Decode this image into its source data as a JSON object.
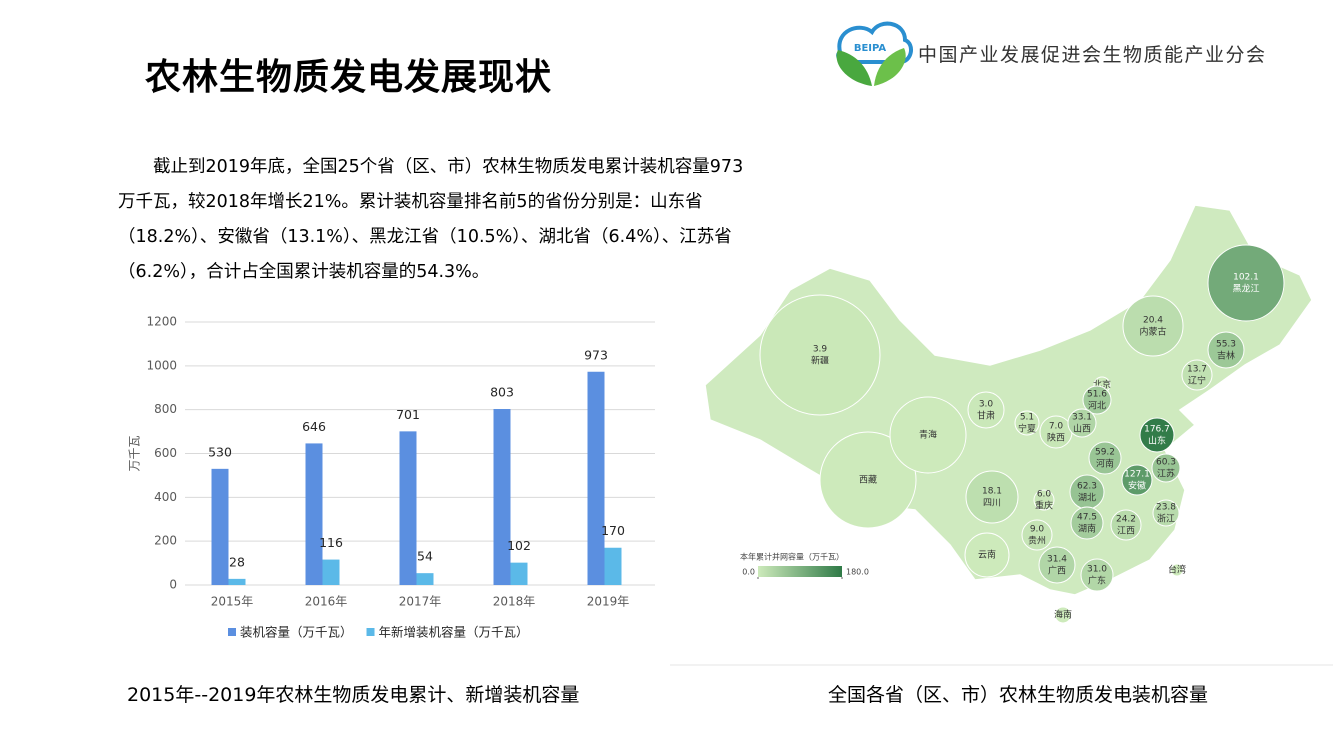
{
  "header": {
    "title": "农林生物质发电发展现状",
    "org": "中国产业发展促进会生物质能产业分会",
    "logo": "BEIPA"
  },
  "paragraph": "截止到2019年底，全国25个省（区、市）农林生物质发电累计装机容量973万千瓦，较2018年增长21%。累计装机容量排名前5的省份分别是：山东省（18.2%）、安徽省（13.1%）、黑龙江省（10.5%）、湖北省（6.4%）、江苏省（6.2%），合计占全国累计装机容量的54.3%。",
  "chart_data": {
    "type": "bar",
    "categories": [
      "2015年",
      "2016年",
      "2017年",
      "2018年",
      "2019年"
    ],
    "series": [
      {
        "name": "装机容量（万千瓦）",
        "color": "#5b8fe0",
        "values": [
          530,
          646,
          701,
          803,
          973
        ]
      },
      {
        "name": "年新增装机容量（万千瓦）",
        "color": "#5bb9e8",
        "values": [
          28,
          116,
          54,
          102,
          170
        ]
      }
    ],
    "y_label": "万千瓦",
    "ylim": [
      0,
      1200
    ],
    "yticks": [
      0,
      200,
      400,
      600,
      800,
      1000,
      1200
    ],
    "grid": true,
    "legend": "bottom"
  },
  "chart_caption": "2015年--2019年农林生物质发电累计、新增装机容量",
  "map": {
    "legend_title": "本年累计并网容量（万千瓦）",
    "legend_ticks": [
      {
        "value": 0,
        "label": "0.0"
      },
      {
        "value": 180,
        "label": "180.0"
      }
    ],
    "low_color": "#cdeabb",
    "high_color": "#2f7a47",
    "provinces": [
      "新疆",
      "西藏",
      "青海",
      "甘肃",
      "宁夏",
      "陕西",
      "内蒙古",
      "黑龙江",
      "吉林",
      "辽宁",
      "北京",
      "河北",
      "山西",
      "山东",
      "河南",
      "江苏",
      "安徽",
      "湖北",
      "浙江",
      "四川",
      "重庆",
      "贵州",
      "湖南",
      "江西",
      "云南",
      "广西",
      "广东",
      "台湾",
      "海南"
    ],
    "values": [
      3.9,
      null,
      null,
      3.0,
      5.1,
      7.0,
      20.4,
      102.1,
      55.3,
      13.7,
      null,
      51.6,
      33.1,
      176.7,
      59.2,
      60.3,
      127.1,
      62.3,
      23.8,
      18.1,
      6.0,
      9.0,
      47.5,
      24.2,
      null,
      31.4,
      31.0,
      null,
      null
    ],
    "value_labels": [
      "3.9",
      null,
      null,
      "3.0",
      "5.1",
      "7.0",
      "20.4",
      "102.1",
      "55.3",
      "13.7",
      null,
      "51.6",
      "33.1",
      "176.7",
      "59.2",
      "60.3",
      "127.1",
      "62.3",
      "23.8",
      "18.1",
      "6.0",
      "9.0",
      "47.5",
      "24.2",
      null,
      "31.4",
      "31.0",
      null,
      null
    ]
  },
  "map_caption": "全国各省（区、市）农林生物质发电装机容量"
}
